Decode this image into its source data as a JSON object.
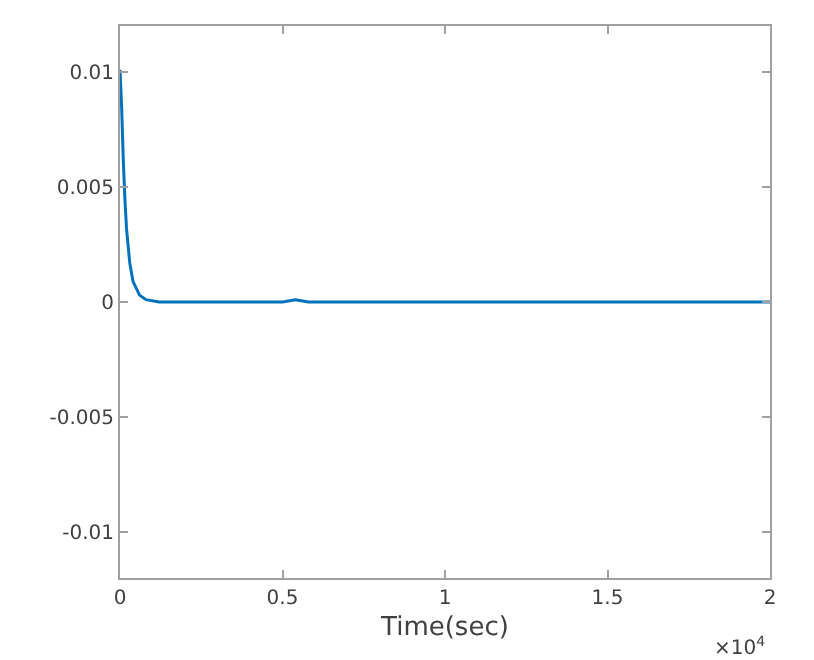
{
  "chart_data": {
    "type": "line",
    "xlabel": "Time(sec)",
    "x": [
      0,
      0.005,
      0.01,
      0.015,
      0.02,
      0.03,
      0.04,
      0.06,
      0.08,
      0.12,
      0.2,
      0.3,
      0.5,
      0.54,
      0.58,
      0.8,
      1.2,
      1.6,
      2
    ],
    "series": [
      {
        "color": "#0072bd",
        "values": [
          0.0101,
          0.0085,
          0.0062,
          0.0045,
          0.0032,
          0.0017,
          0.0009,
          0.0003,
          0.0001,
          0,
          0,
          0,
          0,
          0.0001,
          0,
          0,
          0,
          0,
          0
        ]
      }
    ],
    "xlim": [
      0,
      2
    ],
    "xticks": [
      0,
      0.5,
      1,
      1.5,
      2
    ],
    "ylim": [
      -0.012,
      0.012
    ],
    "yticks": [
      {
        "value": -0.01,
        "label": "-0.01"
      },
      {
        "value": -0.005,
        "label": "-0.005"
      },
      0,
      {
        "value": 0.005,
        "label": "0.005"
      },
      {
        "value": 0.01,
        "label": "0.01"
      }
    ],
    "annotations": [
      "×10$^{4}$"
    ],
    "grid": false,
    "line_style": "solid",
    "marker": "none"
  }
}
